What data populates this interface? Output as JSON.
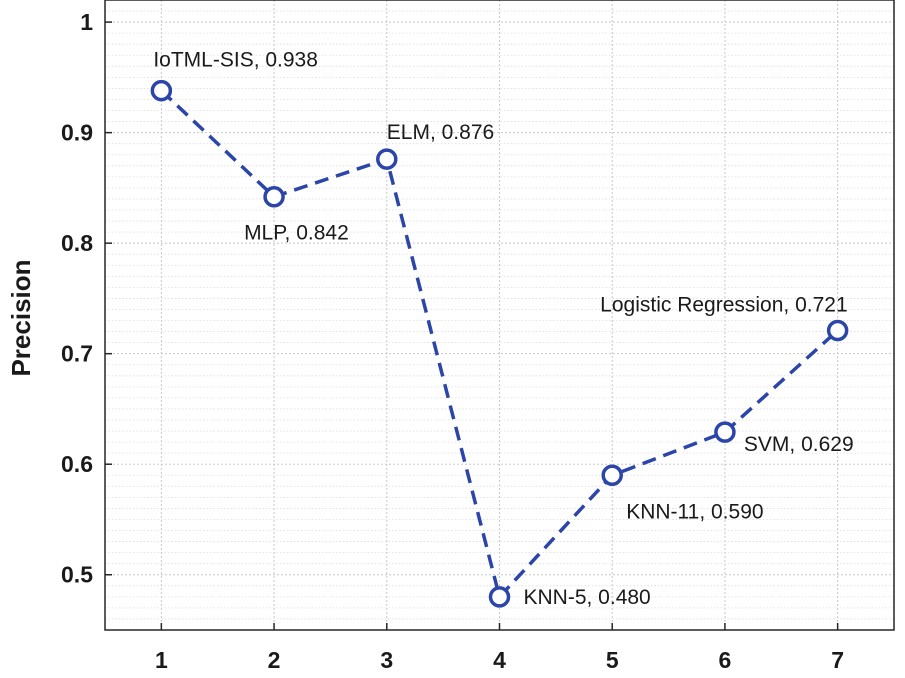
{
  "colors": {
    "series": "#2b45a8",
    "grid_major": "#c8c8c8",
    "grid_minor": "#dddddd",
    "axis": "#262626"
  },
  "chart_data": {
    "type": "line",
    "title": "",
    "xlabel": "",
    "ylabel": "Precision",
    "xlim": [
      0.5,
      7.5
    ],
    "ylim": [
      0.45,
      1.02
    ],
    "x_ticks": [
      1,
      2,
      3,
      4,
      5,
      6,
      7
    ],
    "y_ticks": [
      0.5,
      0.6,
      0.7,
      0.8,
      0.9,
      1
    ],
    "x_tick_labels": [
      "1",
      "2",
      "3",
      "4",
      "5",
      "6",
      "7"
    ],
    "y_tick_labels": [
      "0.5",
      "0.6",
      "0.7",
      "0.8",
      "0.9",
      "1"
    ],
    "grid": true,
    "series": [
      {
        "name": "Precision",
        "line_style": "dashed",
        "marker": "circle",
        "x": [
          1,
          2,
          3,
          4,
          5,
          6,
          7
        ],
        "values": [
          0.938,
          0.842,
          0.876,
          0.48,
          0.59,
          0.629,
          0.721
        ],
        "labels": [
          "IoTML-SIS, 0.938",
          "MLP, 0.842",
          "ELM, 0.876",
          "KNN-5, 0.480",
          "KNN-11, 0.590",
          "SVM, 0.629",
          "Logistic Regression, 0.721"
        ]
      }
    ]
  }
}
